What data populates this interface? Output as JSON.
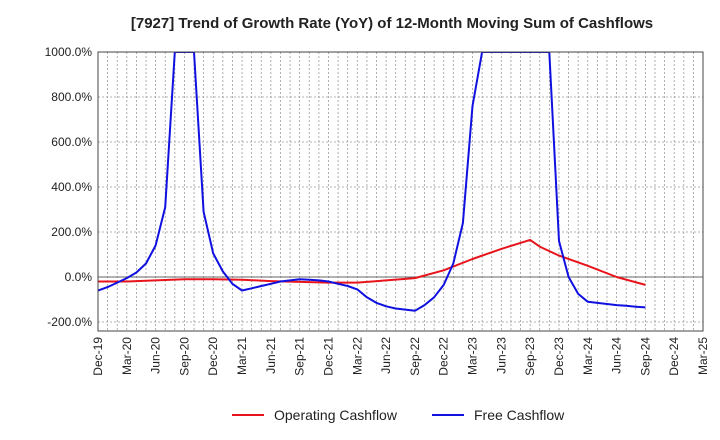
{
  "chart_data": {
    "type": "line",
    "title": "[7927]  Trend of Growth Rate (YoY) of 12-Month Moving Sum of Cashflows",
    "xlabel": "",
    "ylabel": "",
    "ylim": [
      -240,
      1000
    ],
    "yticks": [
      -200,
      0,
      200,
      400,
      600,
      800,
      1000
    ],
    "ytick_labels": [
      "-200.0%",
      "0.0%",
      "200.0%",
      "400.0%",
      "600.0%",
      "800.0%",
      "1000.0%"
    ],
    "xtick_labels": [
      "Dec-19",
      "Mar-20",
      "Jun-20",
      "Sep-20",
      "Dec-20",
      "Mar-21",
      "Jun-21",
      "Sep-21",
      "Dec-21",
      "Mar-22",
      "Jun-22",
      "Sep-22",
      "Dec-22",
      "Mar-23",
      "Jun-23",
      "Sep-23",
      "Dec-23",
      "Mar-24",
      "Jun-24",
      "Sep-24",
      "Dec-24",
      "Mar-25"
    ],
    "grid": true,
    "legend_position": "bottom",
    "series": [
      {
        "name": "Operating Cashflow",
        "color": "#e8141b",
        "x": [
          "2019-12",
          "2020-03",
          "2020-06",
          "2020-09",
          "2020-12",
          "2021-03",
          "2021-06",
          "2021-09",
          "2021-12",
          "2022-03",
          "2022-06",
          "2022-09",
          "2022-12",
          "2023-03",
          "2023-06",
          "2023-09",
          "2023-10",
          "2023-12",
          "2024-03",
          "2024-06",
          "2024-09"
        ],
        "y": [
          -20,
          -20,
          -15,
          -10,
          -10,
          -12,
          -18,
          -22,
          -25,
          -25,
          -15,
          -5,
          30,
          80,
          125,
          165,
          135,
          95,
          50,
          0,
          -35
        ]
      },
      {
        "name": "Free Cashflow",
        "color": "#1010e0",
        "x": [
          "2019-12",
          "2020-01",
          "2020-02",
          "2020-03",
          "2020-04",
          "2020-05",
          "2020-06",
          "2020-07",
          "2020-08",
          "2020-09",
          "2020-10",
          "2020-11",
          "2020-12",
          "2021-01",
          "2021-02",
          "2021-03",
          "2021-04",
          "2021-05",
          "2021-06",
          "2021-07",
          "2021-08",
          "2021-09",
          "2021-10",
          "2021-11",
          "2021-12",
          "2022-01",
          "2022-02",
          "2022-03",
          "2022-04",
          "2022-05",
          "2022-06",
          "2022-07",
          "2022-08",
          "2022-09",
          "2022-10",
          "2022-11",
          "2022-12",
          "2023-01",
          "2023-02",
          "2023-03",
          "2023-04",
          "2023-11",
          "2023-12",
          "2024-01",
          "2024-02",
          "2024-03",
          "2024-04",
          "2024-05",
          "2024-06",
          "2024-07",
          "2024-08",
          "2024-09"
        ],
        "y": [
          -60,
          -45,
          -25,
          -5,
          20,
          60,
          140,
          310,
          1000,
          1000,
          1000,
          290,
          105,
          25,
          -30,
          -60,
          -50,
          -40,
          -30,
          -20,
          -15,
          -10,
          -12,
          -15,
          -20,
          -30,
          -40,
          -55,
          -90,
          -115,
          -130,
          -140,
          -145,
          -150,
          -125,
          -90,
          -35,
          60,
          240,
          760,
          1000,
          1000,
          160,
          0,
          -75,
          -110,
          -115,
          -120,
          -125,
          -128,
          -132,
          -135
        ]
      }
    ]
  }
}
